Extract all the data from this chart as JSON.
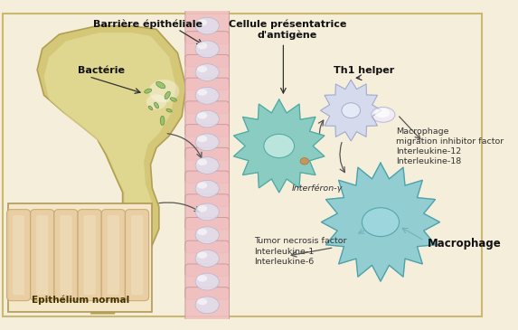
{
  "bg_color": "#f5eedb",
  "border_color": "#c8b870",
  "labels": {
    "barriere": "Barrière épithéliale",
    "bacterie": "Bactérie",
    "cellule": "Cellule présentatrice\nd'antigène",
    "th1": "Th1 helper",
    "interferon": "Interféron-γ",
    "macrophage_label": "Macrophage",
    "epithelium": "Epithélium normal",
    "tnf": "Tumor necrosis factor\nInterleukine-1\nInterleukine-6",
    "mif": "Macrophage\nmigration inhibitor factor\nInterleukine-12\nInterleukine-18"
  },
  "colors": {
    "cell_blue": "#7ec8c0",
    "cell_blue_dark": "#50a8a0",
    "cell_center": "#c0e8e0",
    "intestine_pink": "#f0c0c0",
    "intestine_inner": "#e0e0ee",
    "gut_body": "#d4c878",
    "gut_inner": "#e8e0a0",
    "gut_outline": "#b0a050",
    "bacteria_green": "#90c060",
    "bg_inset": "#f5e8c8",
    "villi_tan": "#e8cca0",
    "villi_tan_dark": "#c8a870",
    "reddish_spot": "#c07050",
    "arrow_dark": "#444444",
    "th1_body": "#d0d8f0",
    "th1_dark": "#a0a8c8",
    "th1_blob": "#e8e0f0",
    "macrophage_body": "#80c8d0",
    "macrophage_dark": "#50a0a8"
  },
  "figsize": [
    5.73,
    3.65
  ],
  "dpi": 100
}
